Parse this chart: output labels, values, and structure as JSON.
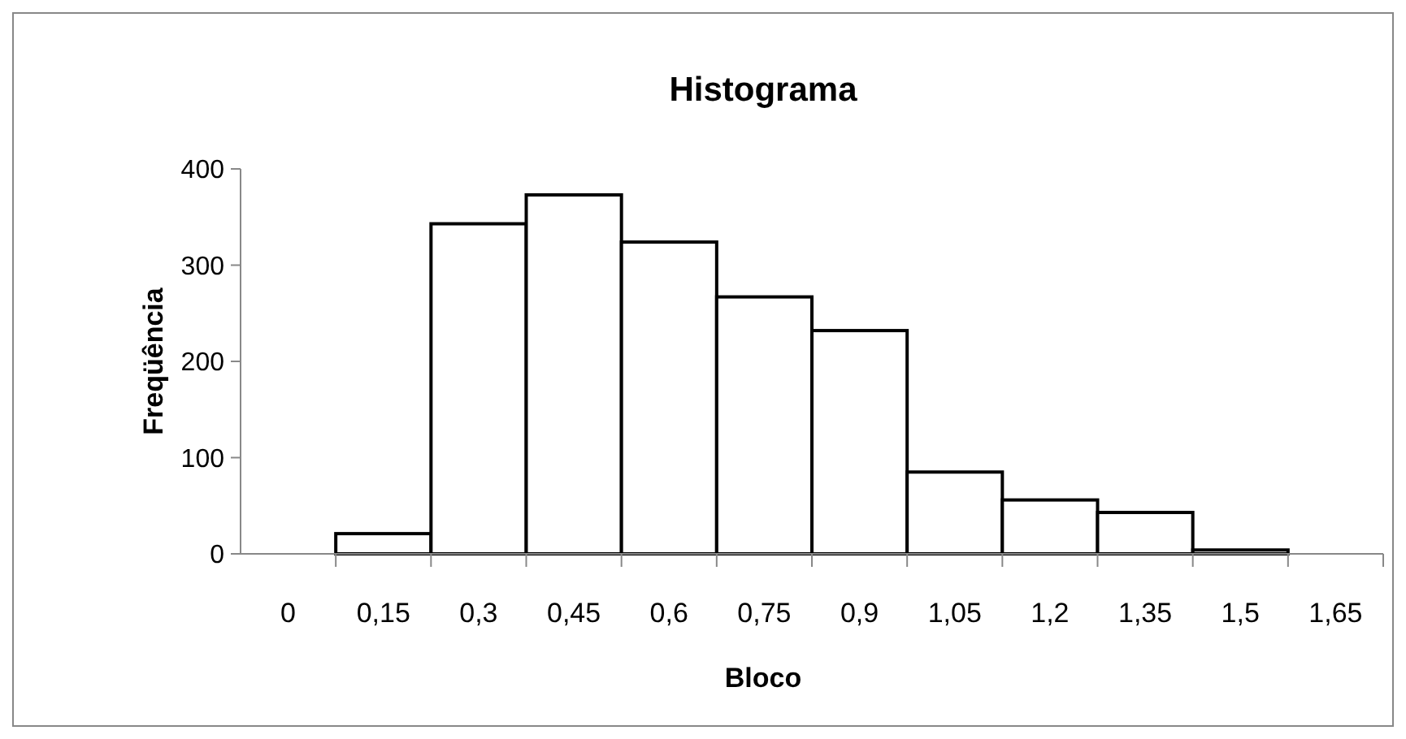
{
  "chart_data": {
    "type": "bar",
    "title": "Histograma",
    "xlabel": "Bloco",
    "ylabel": "Freqüência",
    "categories": [
      "0",
      "0,15",
      "0,3",
      "0,45",
      "0,6",
      "0,75",
      "0,9",
      "1,05",
      "1,2",
      "1,35",
      "1,5",
      "1,65"
    ],
    "values": [
      0,
      21,
      343,
      373,
      324,
      267,
      232,
      85,
      56,
      43,
      4,
      0
    ],
    "color": "#ffffff",
    "ylim": [
      0,
      400
    ],
    "yticks": [
      0,
      100,
      200,
      300,
      400
    ],
    "grid": false
  }
}
